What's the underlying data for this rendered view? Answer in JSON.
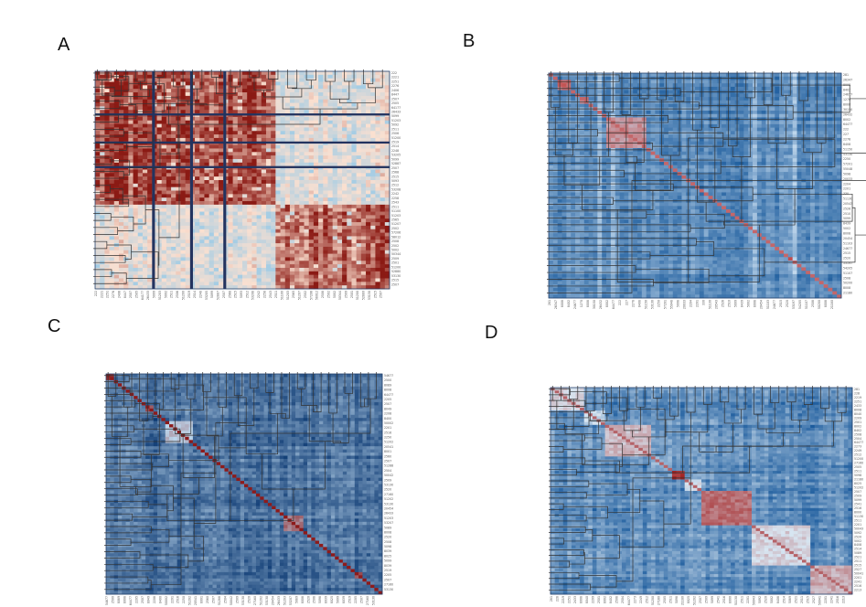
{
  "figure": {
    "panels": [
      {
        "id": "A",
        "label": "A"
      },
      {
        "id": "B",
        "label": "B"
      },
      {
        "id": "C",
        "label": "C"
      },
      {
        "id": "D",
        "label": "D"
      }
    ]
  },
  "chart_data": [
    {
      "panel": "A",
      "type": "heatmap",
      "colormap": "reds",
      "colors": {
        "low": "#a6cde4",
        "mid": "#fbe0d0",
        "high": "#8b1a14"
      },
      "n": 62,
      "clusters": [
        38,
        24
      ],
      "within_cluster_similarity": [
        0.88,
        0.8
      ],
      "between_cluster_similarity": 0.35,
      "dark_lines": [
        12,
        20,
        27
      ],
      "row_labels": [
        "222",
        "2221",
        "2251",
        "2276",
        "2406",
        "8447",
        "2507",
        "2505",
        "64177",
        "26433",
        "5099",
        "51203",
        "5092",
        "2511",
        "2506",
        "51200",
        "2519",
        "2514",
        "2248",
        "53205",
        "5099",
        "52887",
        "2507",
        "2568",
        "2515",
        "5093",
        "2512",
        "53208",
        "2242",
        "2258",
        "2543",
        "2511",
        "51100",
        "51203",
        "2565",
        "51207",
        "2502",
        "57206",
        "58012",
        "2508",
        "2502",
        "5002",
        "50344",
        "2509",
        "2501",
        "51200",
        "52880",
        "53130",
        "2515",
        "2507"
      ],
      "xtick_style": "rotated, unreadable at source resolution"
    },
    {
      "panel": "B",
      "type": "heatmap",
      "colormap": "blues",
      "colors": {
        "low": "#1f5e9e",
        "mid": "#c7dcef",
        "high": "#c2241d"
      },
      "n": 66,
      "blocks": [
        [
          2,
          5,
          0.8
        ],
        [
          7,
          9,
          0.75
        ],
        [
          13,
          22,
          0.7
        ],
        [
          33,
          34,
          0.62
        ],
        [
          54,
          55,
          0.95
        ],
        [
          60,
          61,
          0.65
        ]
      ],
      "bright_columns": [
        11,
        14,
        46,
        55
      ],
      "row_labels": [
        "281",
        "26347",
        "8008",
        "8402",
        "24677",
        "1270",
        "8008",
        "30150",
        "26432",
        "8002",
        "64477",
        "222",
        "227",
        "2278",
        "8408",
        "51150",
        "53130",
        "2250",
        "57201",
        "55048",
        "5098",
        "20033",
        "2204",
        "2201",
        "330",
        "51130",
        "20543",
        "2526",
        "2510",
        "5099",
        "8439",
        "5002",
        "8008",
        "20454",
        "51103",
        "24677",
        "2515",
        "2520",
        "53197",
        "54205",
        "51107",
        "2508",
        "50200",
        "8008",
        "21180"
      ],
      "xtick_style": "rotated, unreadable at source resolution"
    },
    {
      "panel": "C",
      "type": "heatmap",
      "colormap": "blues",
      "colors": {
        "low": "#0d3a73",
        "mid": "#bcd6ec",
        "high": "#8a0f0e"
      },
      "n": 70,
      "diagonal": "strong",
      "blocks": [
        [
          0,
          2,
          0.9
        ],
        [
          10,
          12,
          0.8
        ],
        [
          15,
          22,
          0.55
        ],
        [
          45,
          50,
          0.75
        ],
        [
          63,
          65,
          0.85
        ]
      ],
      "row_labels": [
        "54677",
        "2500",
        "8089",
        "8008",
        "64477",
        "2205",
        "2507",
        "8049",
        "2208",
        "8400",
        "50002",
        "2201",
        "2516",
        "2250",
        "51202",
        "20541",
        "8001",
        "2560",
        "2507",
        "51288",
        "2504",
        "50042",
        "2509",
        "53130",
        "2520",
        "27160",
        "51202",
        "53130",
        "20454",
        "26433",
        "51203",
        "53207",
        "5089",
        "8008",
        "2520",
        "2508",
        "5098",
        "8039",
        "8025",
        "5099",
        "8039",
        "2519",
        "2205",
        "2507",
        "27160",
        "53130"
      ],
      "xtick_style": "rotated, unreadable at source resolution"
    },
    {
      "panel": "D",
      "type": "heatmap",
      "colormap": "blue-red",
      "colors": {
        "low": "#1a5a9c",
        "mid": "#d8e6f2",
        "high": "#a11a1a"
      },
      "n": 72,
      "blocks": [
        [
          0,
          8,
          0.55
        ],
        [
          8,
          13,
          0.45
        ],
        [
          13,
          24,
          0.62
        ],
        [
          24,
          29,
          0.3
        ],
        [
          29,
          32,
          0.95
        ],
        [
          32,
          36,
          0.5
        ],
        [
          36,
          48,
          0.8
        ],
        [
          48,
          62,
          0.55
        ],
        [
          62,
          72,
          0.65
        ]
      ],
      "row_labels": [
        "281",
        "228",
        "2219",
        "2251",
        "2433",
        "8008",
        "8040",
        "2209",
        "2501",
        "8002",
        "8402",
        "2508",
        "2504",
        "64477",
        "2273",
        "2249",
        "2512",
        "51200",
        "27160",
        "2505",
        "2511",
        "5098",
        "21180",
        "8025",
        "51202",
        "2507",
        "2509",
        "5099",
        "2541",
        "2516",
        "8000",
        "51130",
        "2511",
        "2201",
        "50043",
        "5092",
        "2520",
        "5002",
        "8408",
        "2514",
        "5089",
        "2521",
        "2511",
        "2515",
        "2527",
        "50041",
        "2201",
        "2241",
        "2516",
        "2213"
      ],
      "xtick_style": "rotated, unreadable at source resolution"
    }
  ]
}
